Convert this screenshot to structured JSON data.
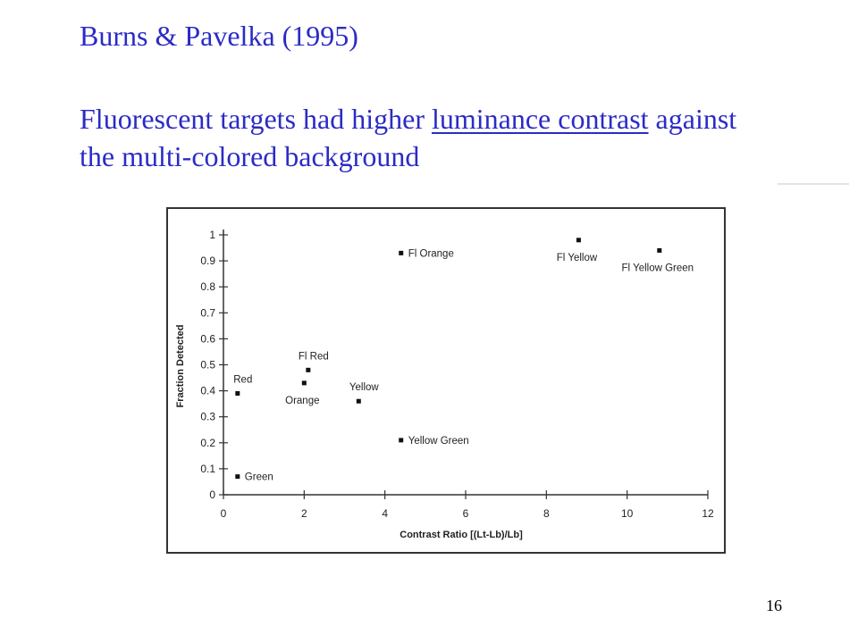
{
  "slide": {
    "title": "Burns & Pavelka (1995)",
    "subtitle_before": "Fluorescent targets had higher ",
    "subtitle_underlined": "luminance contrast",
    "subtitle_after": " against the multi-colored background",
    "page_number": "16",
    "text_color": "#2b2bc6"
  },
  "chart_data": {
    "type": "scatter",
    "xlabel": "Contrast Ratio [(Lt-Lb)/Lb]",
    "ylabel": "Fraction Detected",
    "xlim": [
      0,
      12
    ],
    "ylim": [
      0,
      1
    ],
    "xticks": [
      0,
      2,
      4,
      6,
      8,
      10,
      12
    ],
    "yticks": [
      0,
      0.1,
      0.2,
      0.3,
      0.4,
      0.5,
      0.6,
      0.7,
      0.8,
      0.9,
      1
    ],
    "grid": false,
    "legend": "none",
    "points": [
      {
        "label": "Red",
        "x": 0.35,
        "y": 0.39,
        "label_pos": "above"
      },
      {
        "label": "Green",
        "x": 0.35,
        "y": 0.07,
        "label_pos": "right"
      },
      {
        "label": "Orange",
        "x": 2.0,
        "y": 0.43,
        "label_pos": "below"
      },
      {
        "label": "Fl Red",
        "x": 2.1,
        "y": 0.48,
        "label_pos": "above"
      },
      {
        "label": "Yellow",
        "x": 3.35,
        "y": 0.36,
        "label_pos": "above"
      },
      {
        "label": "Fl Orange",
        "x": 4.4,
        "y": 0.93,
        "label_pos": "right"
      },
      {
        "label": "Yellow Green",
        "x": 4.4,
        "y": 0.21,
        "label_pos": "right"
      },
      {
        "label": "Fl Yellow",
        "x": 8.8,
        "y": 0.98,
        "label_pos": "below"
      },
      {
        "label": "Fl Yellow Green",
        "x": 10.8,
        "y": 0.94,
        "label_pos": "below"
      }
    ]
  }
}
